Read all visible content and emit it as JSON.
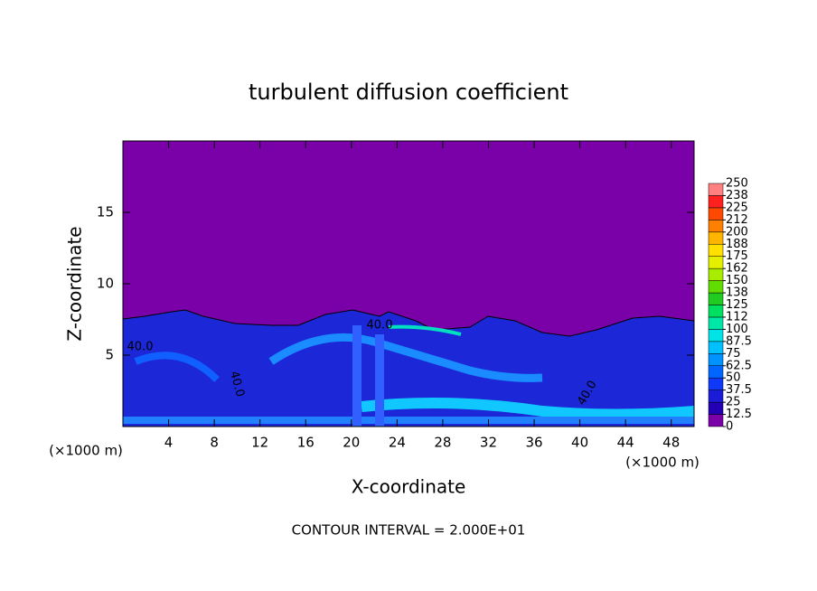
{
  "chart_data": {
    "type": "contour",
    "title": "turbulent diffusion coefficient",
    "x_label": "X-coordinate",
    "y_label": "Z-coordinate",
    "x_unit_labels": [
      "(×1000 m)",
      "(×1000 m)"
    ],
    "footer": "CONTOUR INTERVAL = 2.000E+01",
    "contour_labels": [
      "40.0",
      "40.0",
      "40.0",
      "40.0"
    ],
    "xlim": [
      0,
      50
    ],
    "xticks": [
      4,
      8,
      12,
      16,
      20,
      24,
      28,
      32,
      36,
      40,
      44,
      48
    ],
    "ylim": [
      0,
      20
    ],
    "yticks": [
      5,
      10,
      15
    ],
    "colorbar_ticks": [
      0,
      12.5,
      25,
      37.5,
      50,
      62.5,
      75,
      87.5,
      100,
      {
        "value": 112.5,
        "label": "112"
      },
      125,
      {
        "value": 137.5,
        "label": "138"
      },
      150,
      {
        "value": 162.5,
        "label": "162"
      },
      175,
      {
        "value": 187.5,
        "label": "188"
      },
      200,
      {
        "value": 212.5,
        "label": "212"
      },
      225,
      {
        "value": 237.5,
        "label": "238"
      },
      250
    ],
    "colors": [
      "#7a00a8",
      "#2400b4",
      "#1c1cd8",
      "#1038f8",
      "#0066ff",
      "#0092ff",
      "#00c0ff",
      "#00e4e8",
      "#00e8a8",
      "#00e060",
      "#20cc20",
      "#60dc00",
      "#a8ec00",
      "#e4f000",
      "#ffe000",
      "#ffb400",
      "#ff8000",
      "#ff4800",
      "#ff2020",
      "#ff8080"
    ]
  }
}
